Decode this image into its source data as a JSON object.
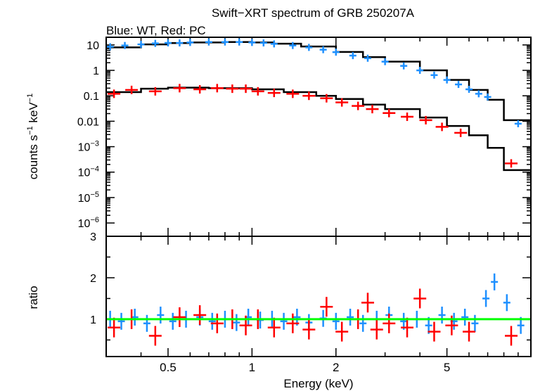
{
  "chart_data": {
    "type": "scatter",
    "title": "Swift−XRT spectrum of GRB 250207A",
    "subtitle": "Blue: WT, Red: PC",
    "xlabel": "Energy (keV)",
    "xscale": "log",
    "xlim": [
      0.3,
      10
    ],
    "x_ticks": [
      {
        "value": 0.5,
        "label": "0.5"
      },
      {
        "value": 1,
        "label": "1"
      },
      {
        "value": 2,
        "label": "2"
      },
      {
        "value": 5,
        "label": "5"
      }
    ],
    "colors": {
      "wt": "#1e90ff",
      "pc": "#ff0000",
      "model": "#000000",
      "unity": "#00ff00"
    },
    "panels": {
      "spectrum": {
        "ylabel_main": "counts s",
        "ylabel_sup1": "−1",
        "ylabel_mid": " keV",
        "ylabel_sup2": "−1",
        "yscale": "log",
        "ylim": [
          3e-07,
          20
        ],
        "y_ticks": [
          {
            "value": 10,
            "label": "10"
          },
          {
            "value": 1,
            "label": "1"
          },
          {
            "value": 0.1,
            "label": "0.1"
          },
          {
            "value": 0.01,
            "label": "0.01"
          },
          {
            "value": 0.001,
            "base": "10",
            "exp": "−3"
          },
          {
            "value": 0.0001,
            "base": "10",
            "exp": "−4"
          },
          {
            "value": 1e-05,
            "base": "10",
            "exp": "−5"
          },
          {
            "value": 1e-06,
            "base": "10",
            "exp": "−6"
          }
        ],
        "series": [
          {
            "key": "wt",
            "points": [
              [
                0.31,
                8.5
              ],
              [
                0.35,
                9.5
              ],
              [
                0.4,
                10.5
              ],
              [
                0.45,
                11.5
              ],
              [
                0.5,
                12
              ],
              [
                0.55,
                12
              ],
              [
                0.6,
                12.5
              ],
              [
                0.7,
                13
              ],
              [
                0.8,
                13
              ],
              [
                0.9,
                13
              ],
              [
                1.0,
                12.5
              ],
              [
                1.1,
                12
              ],
              [
                1.2,
                11
              ],
              [
                1.4,
                9.5
              ],
              [
                1.6,
                8
              ],
              [
                1.8,
                6.5
              ],
              [
                2.0,
                5.2
              ],
              [
                2.3,
                3.8
              ],
              [
                2.6,
                3.0
              ],
              [
                3.0,
                2.2
              ],
              [
                3.5,
                1.5
              ],
              [
                4.0,
                1.0
              ],
              [
                4.5,
                0.65
              ],
              [
                5.0,
                0.42
              ],
              [
                5.5,
                0.28
              ],
              [
                6.0,
                0.18
              ],
              [
                6.5,
                0.12
              ],
              [
                7.0,
                0.09
              ],
              [
                9.0,
                0.008
              ]
            ]
          },
          {
            "key": "pc",
            "points": [
              [
                0.32,
                0.12
              ],
              [
                0.37,
                0.17
              ],
              [
                0.45,
                0.15
              ],
              [
                0.55,
                0.2
              ],
              [
                0.65,
                0.18
              ],
              [
                0.75,
                0.2
              ],
              [
                0.85,
                0.19
              ],
              [
                0.95,
                0.19
              ],
              [
                1.05,
                0.15
              ],
              [
                1.2,
                0.13
              ],
              [
                1.4,
                0.12
              ],
              [
                1.6,
                0.1
              ],
              [
                1.85,
                0.08
              ],
              [
                2.1,
                0.055
              ],
              [
                2.4,
                0.04
              ],
              [
                2.7,
                0.03
              ],
              [
                3.1,
                0.021
              ],
              [
                3.6,
                0.015
              ],
              [
                4.2,
                0.011
              ],
              [
                4.8,
                0.006
              ],
              [
                5.6,
                0.0035
              ],
              [
                8.5,
                0.00022
              ]
            ]
          }
        ],
        "models": [
          {
            "key": "wt",
            "points": [
              [
                0.3,
                8.0
              ],
              [
                0.4,
                10.5
              ],
              [
                0.5,
                11.8
              ],
              [
                0.6,
                12.5
              ],
              [
                0.8,
                13
              ],
              [
                1.0,
                12.5
              ],
              [
                1.2,
                11.2
              ],
              [
                1.5,
                8.7
              ],
              [
                2.0,
                5.3
              ],
              [
                2.5,
                3.3
              ],
              [
                3.0,
                2.2
              ],
              [
                4.0,
                1.0
              ],
              [
                5.0,
                0.42
              ],
              [
                6.0,
                0.17
              ],
              [
                7.0,
                0.07
              ],
              [
                8.0,
                0.011
              ],
              [
                10.0,
                0.011
              ]
            ]
          },
          {
            "key": "pc",
            "points": [
              [
                0.3,
                0.14
              ],
              [
                0.4,
                0.19
              ],
              [
                0.5,
                0.21
              ],
              [
                0.7,
                0.2
              ],
              [
                1.0,
                0.18
              ],
              [
                1.3,
                0.14
              ],
              [
                1.7,
                0.1
              ],
              [
                2.0,
                0.075
              ],
              [
                2.5,
                0.045
              ],
              [
                3.0,
                0.03
              ],
              [
                4.0,
                0.014
              ],
              [
                5.0,
                0.0065
              ],
              [
                6.0,
                0.0028
              ],
              [
                7.0,
                0.0009
              ],
              [
                8.0,
                0.00012
              ],
              [
                10.0,
                0.00012
              ]
            ]
          }
        ]
      },
      "ratio": {
        "ylabel": "ratio",
        "ylim": [
          0.1,
          3.0
        ],
        "y_ticks": [
          {
            "value": 1,
            "label": "1"
          },
          {
            "value": 2,
            "label": "2"
          },
          {
            "value": 3,
            "label": "3"
          }
        ],
        "unity": 1.0,
        "series": [
          {
            "key": "wt",
            "points": [
              [
                0.31,
                1.0
              ],
              [
                0.34,
                0.95
              ],
              [
                0.38,
                1.05
              ],
              [
                0.42,
                0.9
              ],
              [
                0.47,
                1.1
              ],
              [
                0.52,
                0.95
              ],
              [
                0.58,
                1.0
              ],
              [
                0.65,
                1.05
              ],
              [
                0.72,
                0.95
              ],
              [
                0.8,
                1.0
              ],
              [
                0.88,
                0.92
              ],
              [
                0.97,
                1.05
              ],
              [
                1.07,
                0.98
              ],
              [
                1.18,
                1.0
              ],
              [
                1.3,
                0.95
              ],
              [
                1.45,
                1.05
              ],
              [
                1.6,
                0.92
              ],
              [
                1.8,
                1.02
              ],
              [
                2.0,
                0.95
              ],
              [
                2.25,
                1.05
              ],
              [
                2.5,
                0.9
              ],
              [
                2.8,
                1.0
              ],
              [
                3.1,
                1.1
              ],
              [
                3.5,
                0.95
              ],
              [
                3.9,
                1.0
              ],
              [
                4.3,
                0.85
              ],
              [
                4.8,
                1.1
              ],
              [
                5.3,
                0.95
              ],
              [
                5.8,
                1.05
              ],
              [
                6.3,
                0.9
              ],
              [
                6.9,
                1.5
              ],
              [
                7.4,
                1.9
              ],
              [
                8.2,
                1.4
              ],
              [
                9.2,
                0.85
              ]
            ]
          },
          {
            "key": "pc",
            "points": [
              [
                0.32,
                0.8
              ],
              [
                0.37,
                1.0
              ],
              [
                0.45,
                0.6
              ],
              [
                0.55,
                1.05
              ],
              [
                0.65,
                1.1
              ],
              [
                0.75,
                0.9
              ],
              [
                0.85,
                1.0
              ],
              [
                0.95,
                0.85
              ],
              [
                1.05,
                1.0
              ],
              [
                1.2,
                0.8
              ],
              [
                1.4,
                0.9
              ],
              [
                1.6,
                0.75
              ],
              [
                1.85,
                1.3
              ],
              [
                2.1,
                0.7
              ],
              [
                2.4,
                1.0
              ],
              [
                2.6,
                1.4
              ],
              [
                2.8,
                0.75
              ],
              [
                3.1,
                0.9
              ],
              [
                3.6,
                0.8
              ],
              [
                4.0,
                1.5
              ],
              [
                4.5,
                0.7
              ],
              [
                5.2,
                0.85
              ],
              [
                6.0,
                0.7
              ],
              [
                8.5,
                0.6
              ]
            ]
          }
        ]
      }
    }
  }
}
